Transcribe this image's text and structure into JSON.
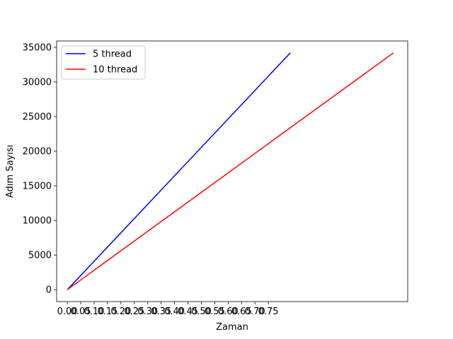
{
  "chart_data": {
    "type": "line",
    "title": "",
    "xlabel": "Zaman",
    "ylabel": "Adım Sayısı",
    "xlim": [
      -0.04,
      1.27
    ],
    "ylim": [
      -1710,
      35910
    ],
    "xticks": [
      "0.00",
      "0.05",
      "0.10",
      "0.15",
      "0.20",
      "0.25",
      "0.30",
      "0.35",
      "0.40",
      "0.45",
      "0.50",
      "0.55",
      "0.60",
      "0.65",
      "0.70",
      "0.75"
    ],
    "yticks": [
      "0",
      "5000",
      "10000",
      "15000",
      "20000",
      "25000",
      "30000",
      "35000"
    ],
    "grid": false,
    "legend_position": "top-left",
    "series": [
      {
        "name": "5 thread",
        "color": "#0000ff",
        "x": [
          0.0,
          0.832
        ],
        "y": [
          0,
          34200
        ]
      },
      {
        "name": "10 thread",
        "color": "#ff0000",
        "x": [
          0.0,
          1.217
        ],
        "y": [
          0,
          34200
        ]
      }
    ]
  }
}
